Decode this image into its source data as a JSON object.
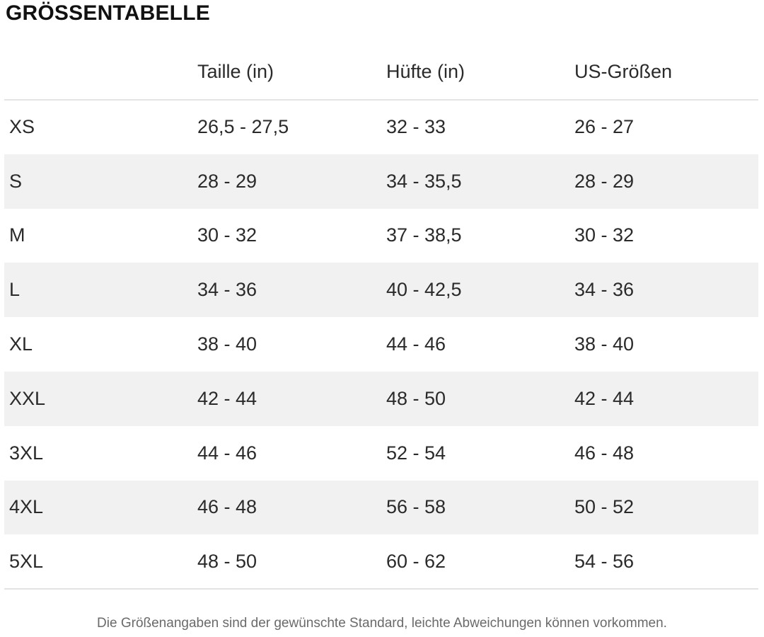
{
  "page_title": "GRÖSSENTABELLE",
  "table": {
    "headers": [
      "",
      "Taille (in)",
      "Hüfte (in)",
      "US-Größen"
    ],
    "rows": [
      [
        "XS",
        "26,5 - 27,5",
        "32 - 33",
        "26 - 27"
      ],
      [
        "S",
        "28 - 29",
        "34 - 35,5",
        "28 - 29"
      ],
      [
        "M",
        "30 - 32",
        "37 - 38,5",
        "30 - 32"
      ],
      [
        "L",
        "34 - 36",
        "40 - 42,5",
        "34 - 36"
      ],
      [
        "XL",
        "38 - 40",
        "44 - 46",
        "38 - 40"
      ],
      [
        "XXL",
        "42 - 44",
        "48 - 50",
        "42 - 44"
      ],
      [
        "3XL",
        "44 - 46",
        "52 - 54",
        "46 - 48"
      ],
      [
        "4XL",
        "46 - 48",
        "56 - 58",
        "50 - 52"
      ],
      [
        "5XL",
        "48 - 50",
        "60 - 62",
        "54 - 56"
      ]
    ]
  },
  "footnote": "Die Größenangaben sind der gewünschte Standard, leichte Abweichungen können vorkommen.",
  "colors": {
    "stripe": "#f1f1f1",
    "divider": "#e4e4e4",
    "text": "#2a2a2a",
    "footnote": "#6a6a6a"
  }
}
